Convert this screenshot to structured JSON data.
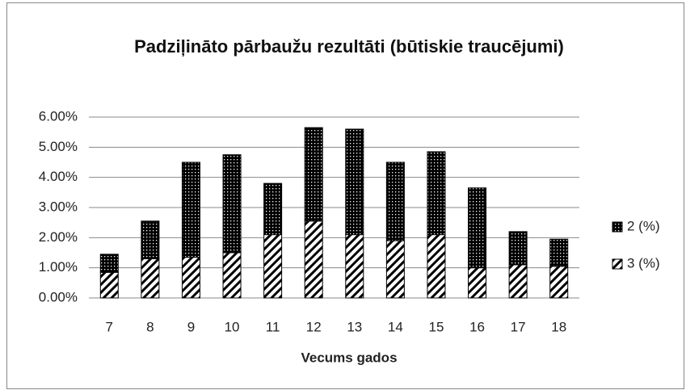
{
  "chart_data": {
    "type": "stacked_bar",
    "title": "Padziļināto pārbaužu rezultāti (būtiskie traucējumi)",
    "x_label": "Vecums gados",
    "categories": [
      "7",
      "8",
      "9",
      "10",
      "11",
      "12",
      "13",
      "14",
      "15",
      "16",
      "17",
      "18"
    ],
    "series": [
      {
        "name": "2 (%)",
        "color": "#000000",
        "pattern": "dots",
        "values": [
          0.6,
          1.25,
          3.15,
          3.25,
          1.7,
          3.1,
          3.5,
          2.6,
          2.75,
          2.65,
          1.1,
          0.9
        ]
      },
      {
        "name": "3 (%)",
        "color": "#000000",
        "pattern": "hatch",
        "values": [
          0.85,
          1.3,
          1.35,
          1.5,
          2.1,
          2.55,
          2.1,
          1.9,
          2.1,
          1.0,
          1.1,
          1.05
        ]
      }
    ],
    "ylim": [
      0,
      6
    ],
    "yticks": [
      {
        "value": 0,
        "label": "0.00%"
      },
      {
        "value": 1,
        "label": "1.00%"
      },
      {
        "value": 2,
        "label": "2.00%"
      },
      {
        "value": 3,
        "label": "3.00%"
      },
      {
        "value": 4,
        "label": "4.00%"
      },
      {
        "value": 5,
        "label": "5.00%"
      },
      {
        "value": 6,
        "label": "6.00%"
      }
    ],
    "grid": true,
    "legend": "right"
  }
}
